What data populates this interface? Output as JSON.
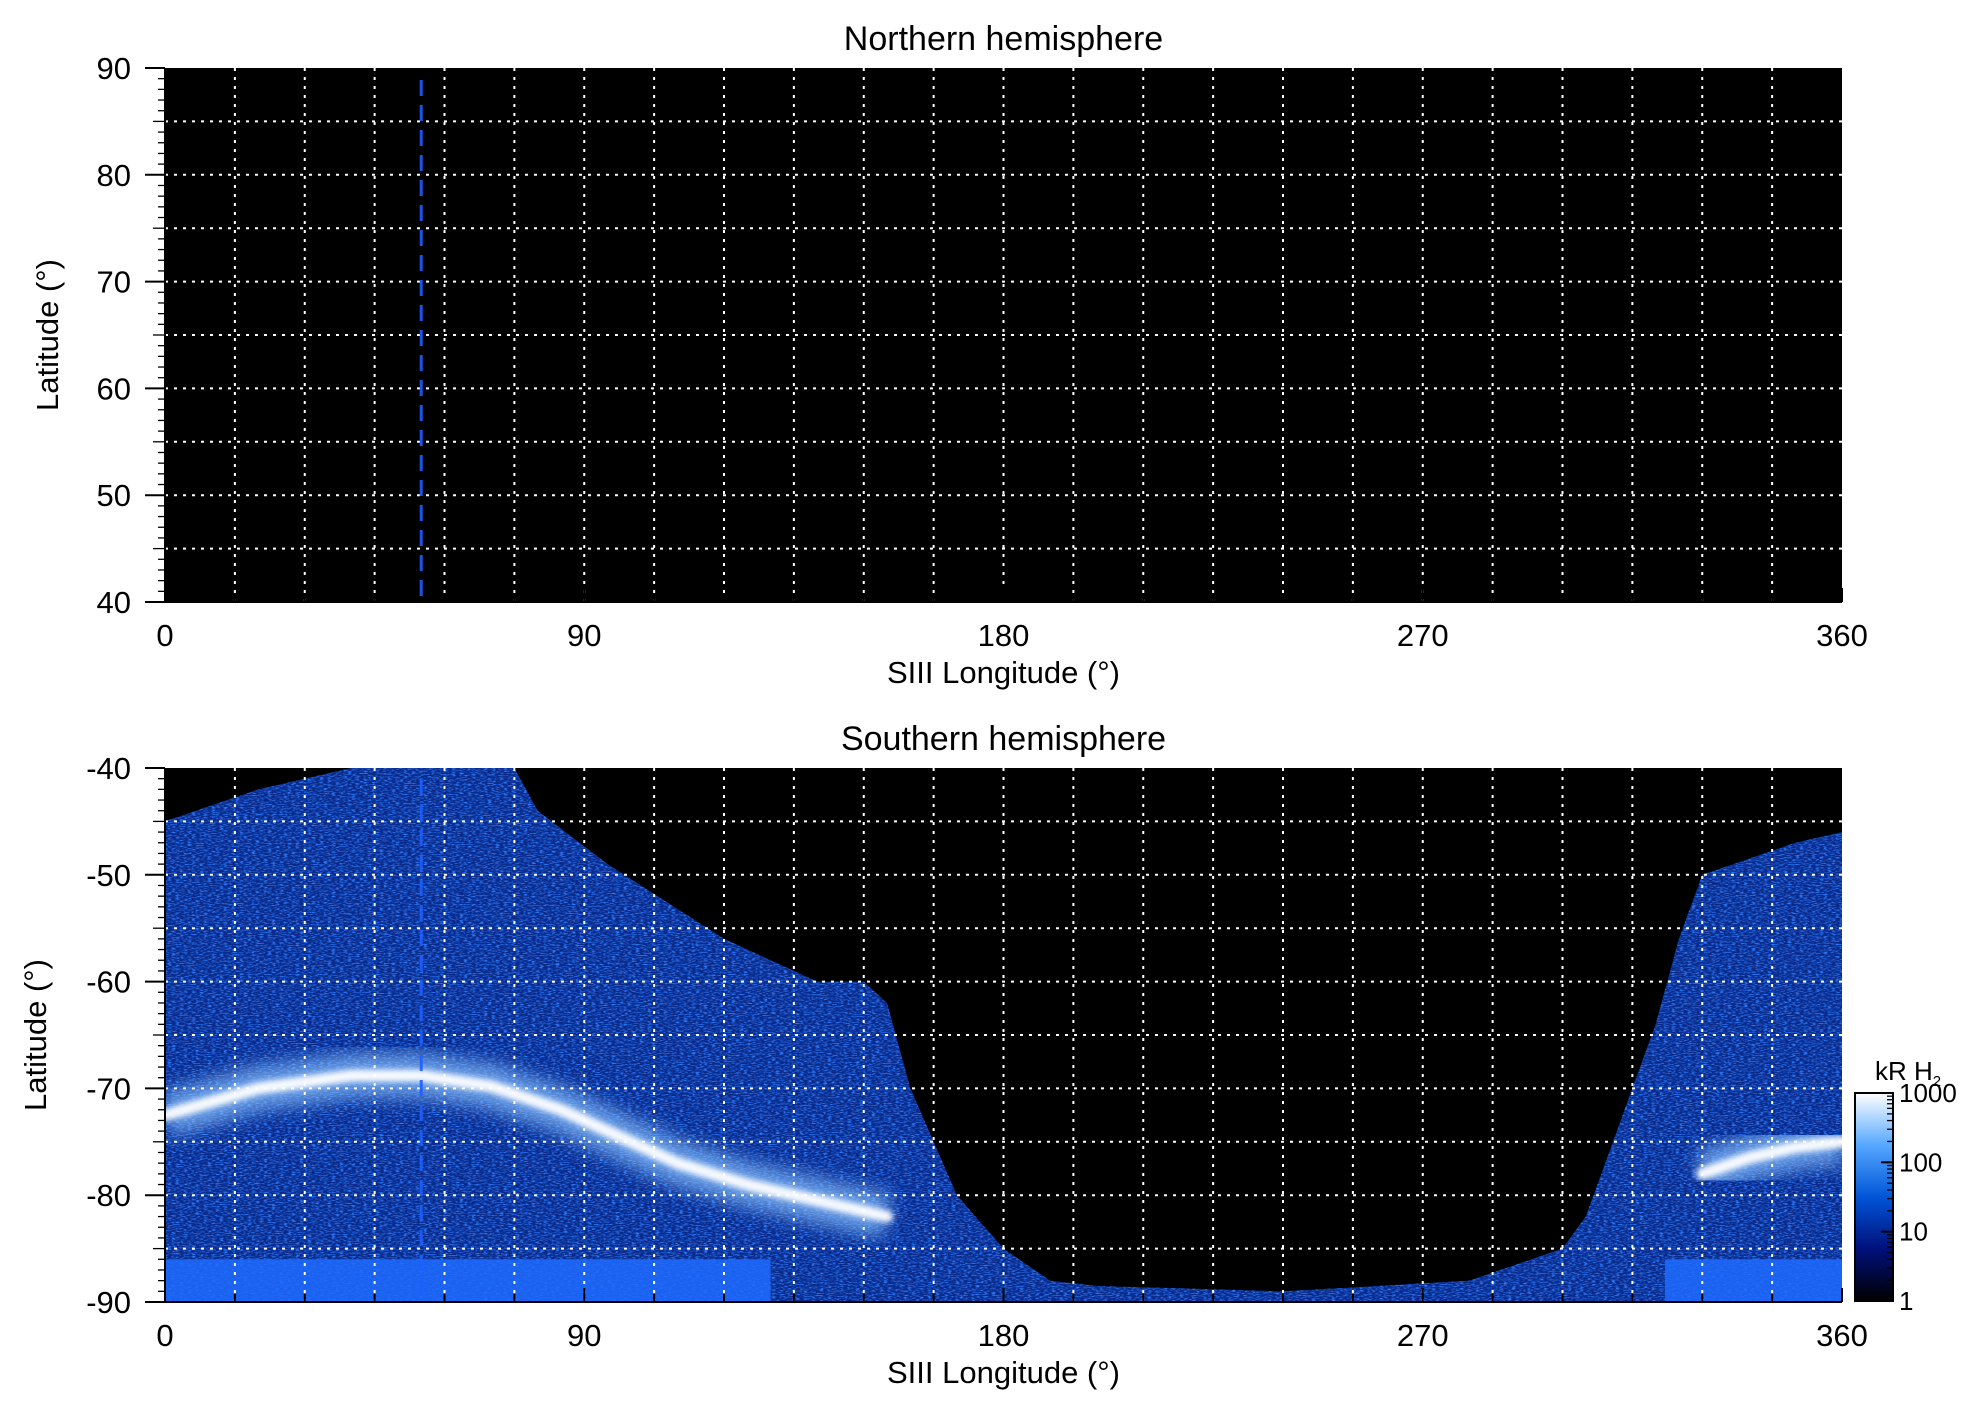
{
  "chart_data": [
    {
      "type": "heatmap",
      "title": "Northern hemisphere",
      "xlabel": "SIII Longitude (°)",
      "ylabel": "Latitude (°)",
      "xlim": [
        0,
        360
      ],
      "ylim": [
        40,
        90
      ],
      "x_ticks": [
        0,
        90,
        180,
        270,
        360
      ],
      "y_ticks": [
        40,
        50,
        60,
        70,
        80,
        90
      ],
      "grid": true,
      "marker_longitude": 55,
      "emission": "none"
    },
    {
      "type": "heatmap",
      "title": "Southern hemisphere",
      "xlabel": "SIII Longitude (°)",
      "ylabel": "Latitude (°)",
      "xlim": [
        0,
        360
      ],
      "ylim": [
        -90,
        -40
      ],
      "x_ticks": [
        0,
        90,
        180,
        270,
        360
      ],
      "y_ticks": [
        -90,
        -80,
        -70,
        -60,
        -50,
        -40
      ],
      "grid": true,
      "marker_longitude": 55,
      "auroral_oval": {
        "longitude": [
          0,
          20,
          40,
          55,
          70,
          85,
          95,
          110,
          125,
          140,
          155,
          330,
          340,
          350,
          360
        ],
        "latitude": [
          -72.5,
          -70,
          -68.8,
          -68.8,
          -69.8,
          -72,
          -74,
          -77,
          -79,
          -80.5,
          -82,
          -78,
          -76.5,
          -75.5,
          -75
        ]
      },
      "coverage_edge": {
        "longitude": [
          0,
          20,
          40,
          75,
          80,
          95,
          120,
          140,
          150,
          155,
          160,
          170,
          180,
          190,
          200,
          240,
          260,
          280,
          300,
          305,
          310,
          320,
          325,
          330,
          350,
          360
        ],
        "latitude": [
          -45,
          -42,
          -40,
          -40,
          -44,
          -49,
          -56,
          -60,
          -60,
          -62,
          -70,
          -80,
          -85,
          -88,
          -88.5,
          -89,
          -88.5,
          -88,
          -85,
          -82,
          -76,
          -64,
          -56,
          -50,
          -47,
          -46
        ]
      }
    }
  ],
  "colorbar": {
    "unit_label": "kR H",
    "unit_subscript": "2",
    "scale": "log",
    "range": [
      1,
      1000
    ],
    "ticks": [
      1,
      10,
      100,
      1000
    ],
    "colors": [
      "#000000",
      "#00107a",
      "#0055d8",
      "#56a8ff",
      "#ffffff"
    ]
  },
  "colors": {
    "background": "#000000",
    "grid": "#ffffff",
    "marker": "#1e5fff"
  }
}
